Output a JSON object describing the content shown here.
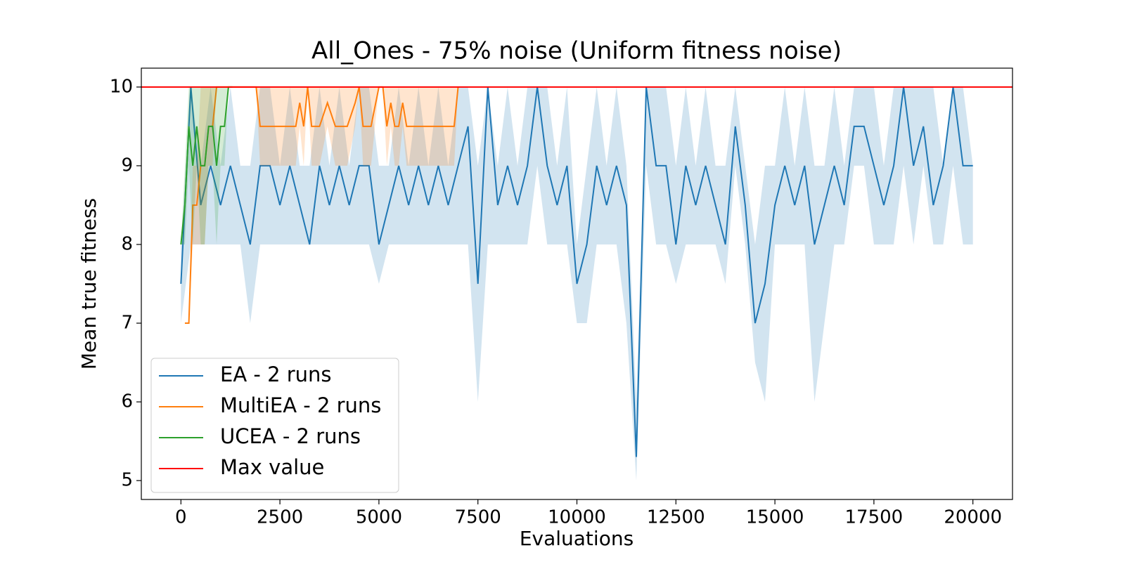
{
  "chart_data": {
    "type": "line",
    "title": "All_Ones - 75% noise (Uniform fitness noise)",
    "x_label": "Evaluations",
    "y_label": "Mean true fitness",
    "xlim": [
      -1000,
      21000
    ],
    "ylim": [
      4.76,
      10.24
    ],
    "xticks": [
      0,
      2500,
      5000,
      7500,
      10000,
      12500,
      15000,
      17500,
      20000
    ],
    "yticks": [
      5,
      6,
      7,
      8,
      9,
      10
    ],
    "legend": "lower left",
    "series": [
      {
        "name": "EA - 2 runs",
        "color": "#1f77b4",
        "x": [
          0,
          250,
          500,
          750,
          1000,
          1250,
          1500,
          1750,
          2000,
          2250,
          2500,
          2750,
          3000,
          3250,
          3500,
          3750,
          4000,
          4250,
          4500,
          4750,
          5000,
          5250,
          5500,
          5750,
          6000,
          6250,
          6500,
          6750,
          7000,
          7250,
          7500,
          7750,
          8000,
          8250,
          8500,
          8750,
          9000,
          9250,
          9500,
          9750,
          10000,
          10250,
          10500,
          10750,
          11000,
          11250,
          11500,
          11750,
          12000,
          12250,
          12500,
          12750,
          13000,
          13250,
          13500,
          13750,
          14000,
          14250,
          14500,
          14750,
          15000,
          15250,
          15500,
          15750,
          16000,
          16250,
          16500,
          16750,
          17000,
          17250,
          17500,
          17750,
          18000,
          18250,
          18500,
          18750,
          19000,
          19250,
          19500,
          19750,
          20000
        ],
        "values": [
          7.5,
          10,
          8.5,
          9,
          8.5,
          9,
          8.5,
          8,
          9,
          9,
          8.5,
          9,
          8.5,
          8,
          9,
          8.5,
          9,
          8.5,
          9,
          9,
          8,
          8.5,
          9,
          8.5,
          9,
          8.5,
          9,
          8.5,
          9,
          9.5,
          7.5,
          10,
          8.5,
          9,
          8.5,
          9,
          10,
          9,
          8.5,
          9,
          7.5,
          8,
          9,
          8.5,
          9,
          8.5,
          5.3,
          10,
          9,
          9,
          8,
          9,
          8.5,
          9,
          8.5,
          8,
          9.5,
          8.5,
          7,
          7.5,
          8.5,
          9,
          8.5,
          9,
          8,
          8.5,
          9,
          8.5,
          9.5,
          9.5,
          9,
          8.5,
          9,
          10,
          9,
          9.5,
          8.5,
          9,
          10,
          9,
          9
        ],
        "band_low": [
          7,
          8,
          8,
          8,
          8,
          8,
          8,
          7,
          8,
          8,
          8,
          8,
          8,
          8,
          8,
          8,
          8,
          8,
          8,
          8,
          7.5,
          8,
          8,
          8,
          8,
          8,
          8,
          8,
          8,
          8,
          6,
          8,
          8,
          8,
          8,
          8,
          9,
          8,
          8,
          8,
          7,
          7,
          8,
          8,
          8,
          7,
          5,
          9,
          8,
          8,
          7.5,
          8,
          8,
          8,
          8,
          7.5,
          9,
          8,
          6.5,
          6,
          8,
          8,
          8,
          8,
          6,
          7,
          8,
          8,
          9,
          9,
          8,
          8,
          8,
          9,
          8,
          9,
          8,
          8,
          9,
          8,
          8
        ],
        "band_high": [
          8,
          10,
          9,
          10,
          9,
          10,
          9,
          9,
          10,
          10,
          9,
          10,
          9,
          9,
          10,
          9,
          10,
          9,
          10,
          10,
          9,
          9,
          10,
          9,
          10,
          9,
          10,
          9,
          10,
          10,
          9,
          10,
          9,
          10,
          9,
          10,
          10,
          10,
          9,
          10,
          8,
          9,
          10,
          9,
          10,
          9,
          6,
          10,
          10,
          10,
          9,
          10,
          9,
          10,
          9,
          9,
          10,
          9,
          8,
          9,
          9,
          10,
          9,
          10,
          9,
          9,
          10,
          9,
          10,
          10,
          10,
          9,
          10,
          10,
          10,
          10,
          10,
          9,
          10,
          10,
          9
        ]
      },
      {
        "name": "MultiEA - 2 runs",
        "color": "#ff7f0e",
        "x": [
          100,
          200,
          300,
          400,
          500,
          600,
          700,
          800,
          900,
          1900,
          2000,
          2200,
          2500,
          2900,
          3000,
          3100,
          3200,
          3300,
          3500,
          3700,
          3900,
          4000,
          4200,
          4400,
          4500,
          4600,
          4700,
          4800,
          5000,
          5100,
          5200,
          5300,
          5400,
          5500,
          5600,
          5700,
          5800,
          6000,
          6500,
          6900,
          7000
        ],
        "values": [
          7,
          7,
          8.5,
          8.5,
          9,
          9,
          9.5,
          9.5,
          10,
          10,
          9.5,
          9.5,
          9.5,
          9.5,
          9.8,
          9.5,
          10,
          9.5,
          9.5,
          9.8,
          9.5,
          9.5,
          9.5,
          9.8,
          10,
          9.5,
          9.5,
          9.5,
          10,
          10,
          9.5,
          9.8,
          9.5,
          9.5,
          9.8,
          9.5,
          9.5,
          9.5,
          9.5,
          9.5,
          10
        ],
        "band_low": [
          7,
          7,
          8,
          8,
          8,
          8,
          9,
          9,
          10,
          10,
          9,
          9,
          9,
          9,
          9.5,
          9,
          10,
          9,
          9,
          9.5,
          9,
          9,
          9,
          9.5,
          10,
          9,
          9,
          9,
          10,
          10,
          9,
          9.5,
          9,
          9,
          9.5,
          9,
          9,
          9,
          9,
          9,
          10
        ],
        "band_high": [
          7,
          7,
          9,
          9,
          10,
          10,
          10,
          10,
          10,
          10,
          10,
          10,
          10,
          10,
          10,
          10,
          10,
          10,
          10,
          10,
          10,
          10,
          10,
          10,
          10,
          10,
          10,
          10,
          10,
          10,
          10,
          10,
          10,
          10,
          10,
          10,
          10,
          10,
          10,
          10,
          10
        ]
      },
      {
        "name": "UCEA - 2 runs",
        "color": "#2ca02c",
        "x": [
          0,
          100,
          200,
          300,
          400,
          500,
          600,
          700,
          800,
          900,
          1000,
          1100,
          1200,
          1300
        ],
        "values": [
          8,
          8.5,
          9.5,
          9,
          9.5,
          9,
          9,
          9.5,
          9.5,
          9,
          9.5,
          9.5,
          10,
          10
        ],
        "band_low": [
          8,
          8,
          9,
          8,
          9,
          8,
          8,
          9,
          9,
          8,
          9,
          9,
          10,
          10
        ],
        "band_high": [
          8,
          9,
          10,
          10,
          10,
          10,
          10,
          10,
          10,
          10,
          10,
          10,
          10,
          10
        ]
      }
    ],
    "reference_lines": [
      {
        "name": "Max value",
        "color": "#ff0000",
        "value": 10
      }
    ]
  }
}
